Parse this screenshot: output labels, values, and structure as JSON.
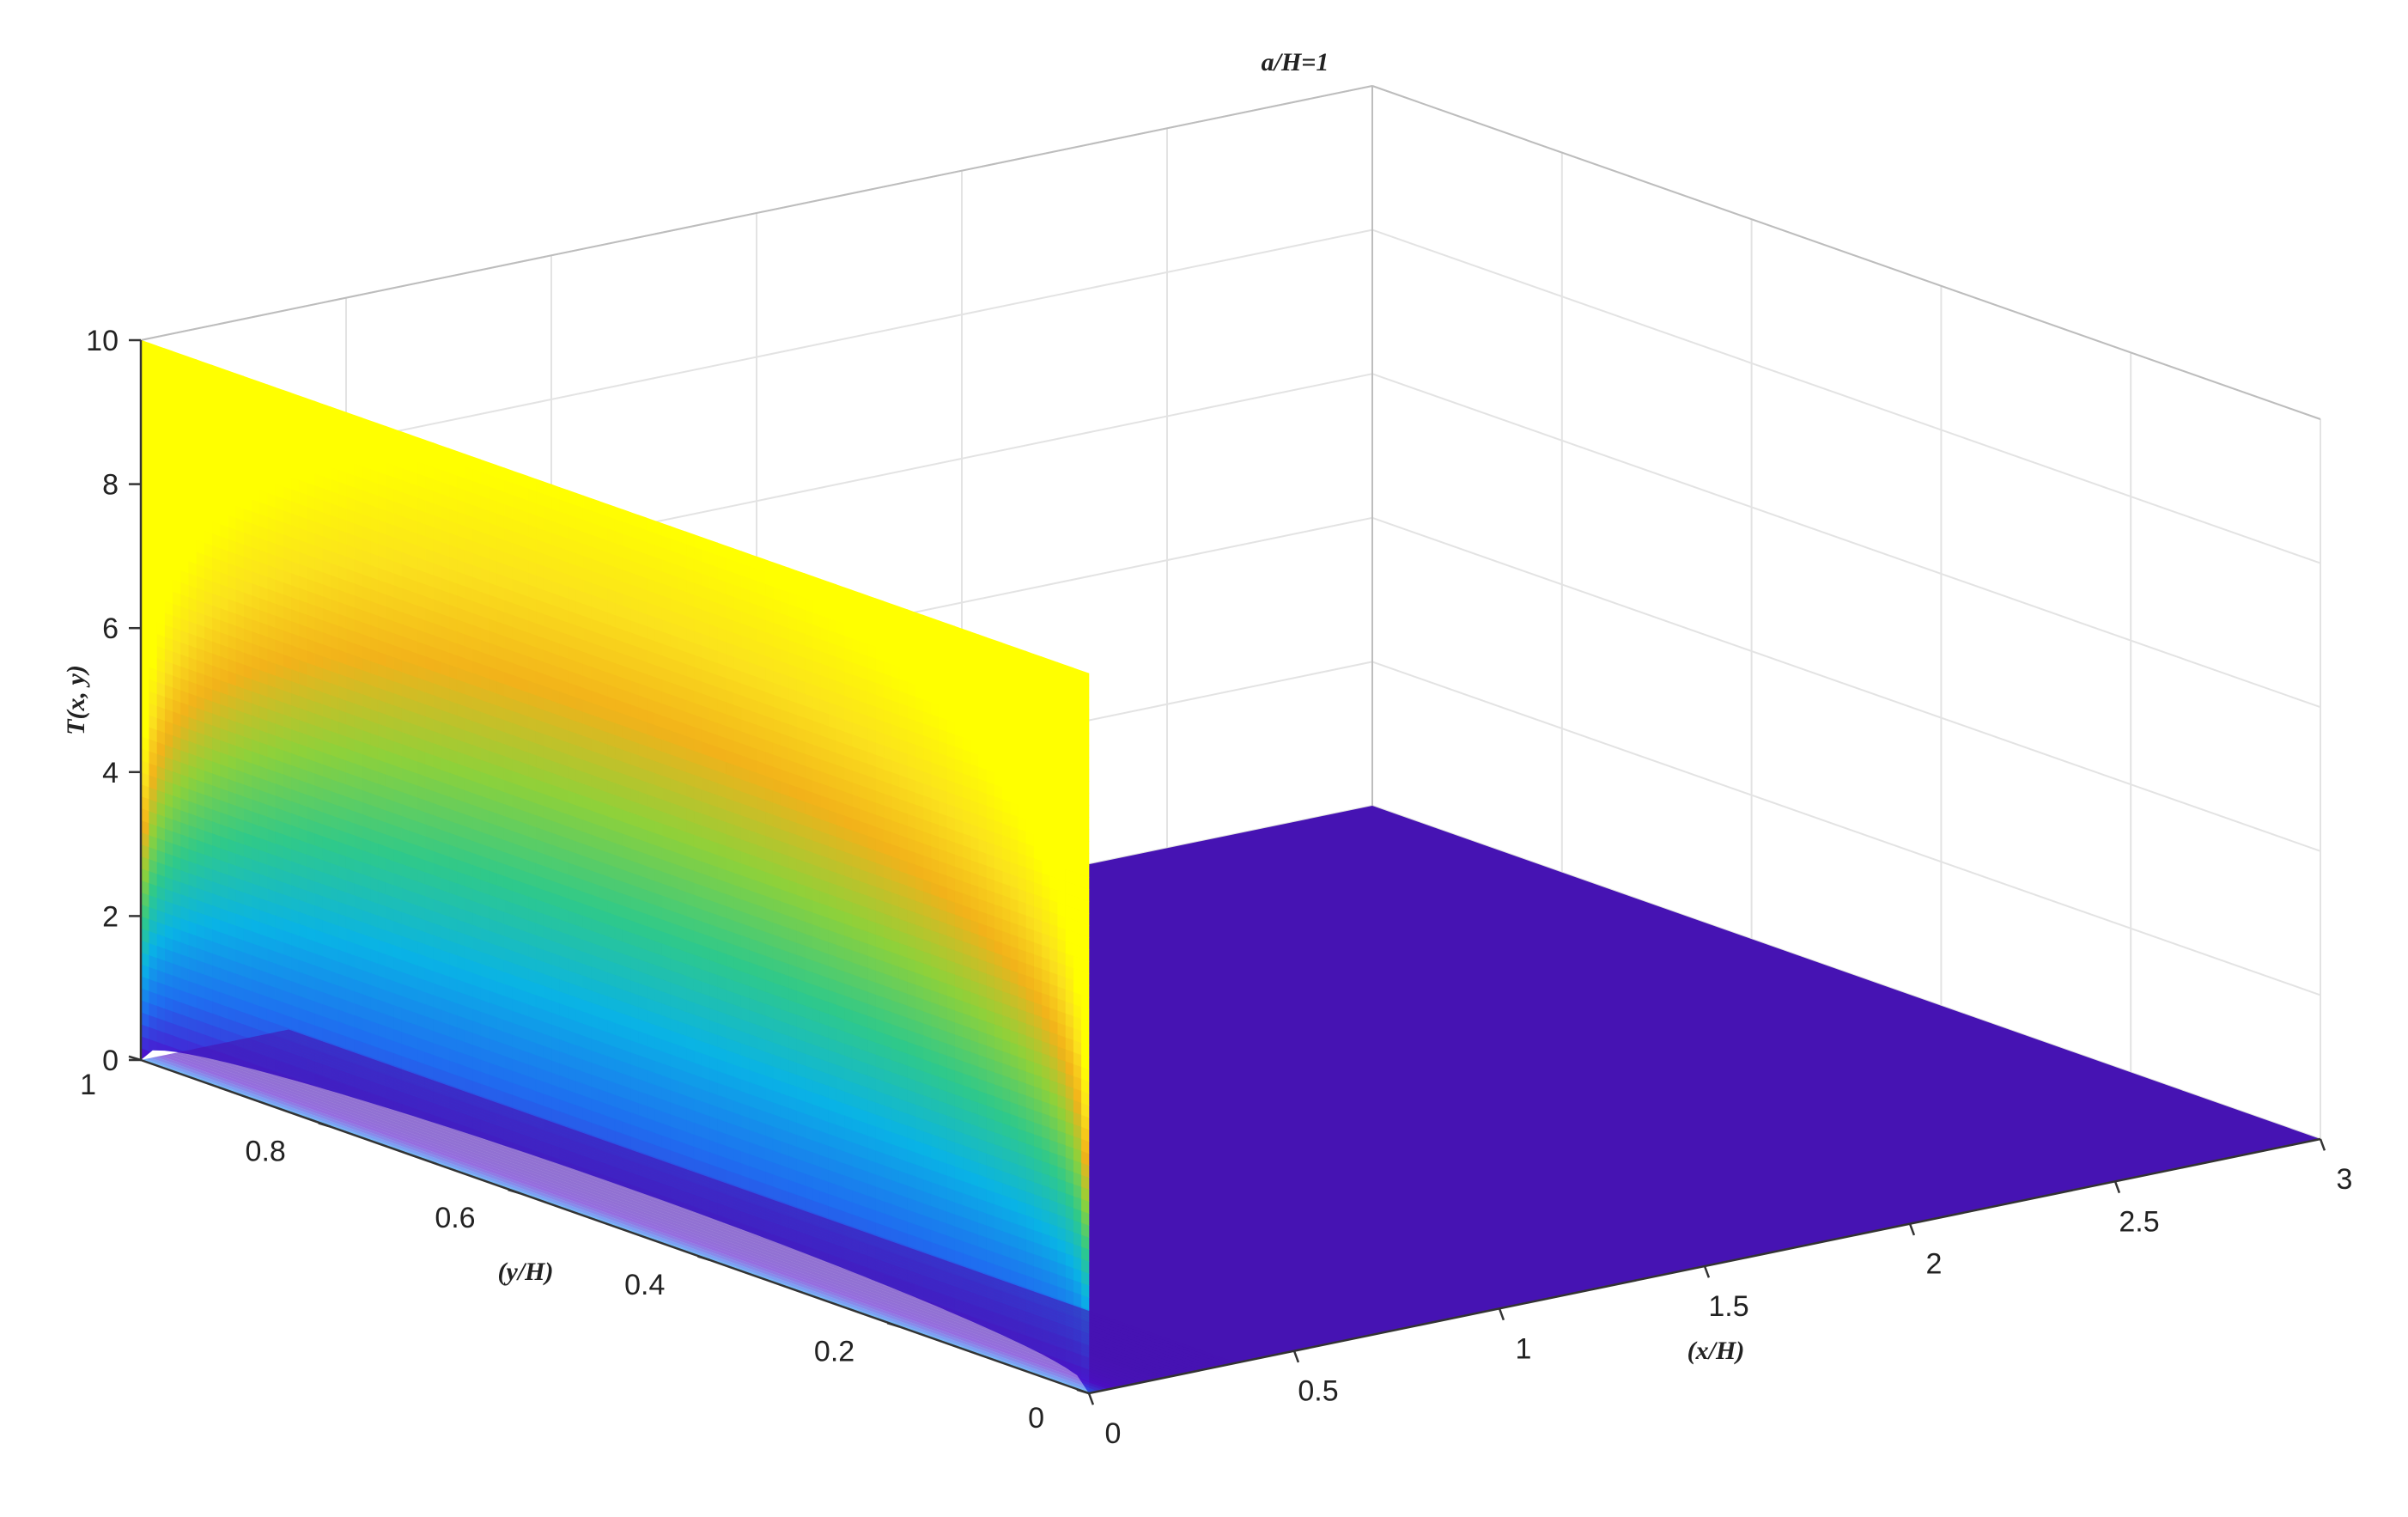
{
  "chart_data": {
    "type": "surface",
    "title": "a/H=1",
    "xlabel": "(x/H)",
    "ylabel": "(y/H)",
    "zlabel": "T(x, y)",
    "xlim": [
      0,
      3
    ],
    "ylim": [
      0,
      1
    ],
    "zlim": [
      0,
      10
    ],
    "x_ticks": [
      "0",
      "0.5",
      "1",
      "1.5",
      "2",
      "2.5",
      "3"
    ],
    "y_ticks": [
      "0",
      "0.2",
      "0.4",
      "0.6",
      "0.8",
      "1"
    ],
    "z_ticks": [
      "0",
      "2",
      "4",
      "6",
      "8",
      "10"
    ],
    "boundary_value_at_x0": 10,
    "colormap": [
      "#3e1a9c",
      "#4f0ccb",
      "#1f6df0",
      "#09b3e6",
      "#2fc98a",
      "#8ed13a",
      "#f2b21a",
      "#fbe21d",
      "#ffff00"
    ],
    "grid": true
  }
}
